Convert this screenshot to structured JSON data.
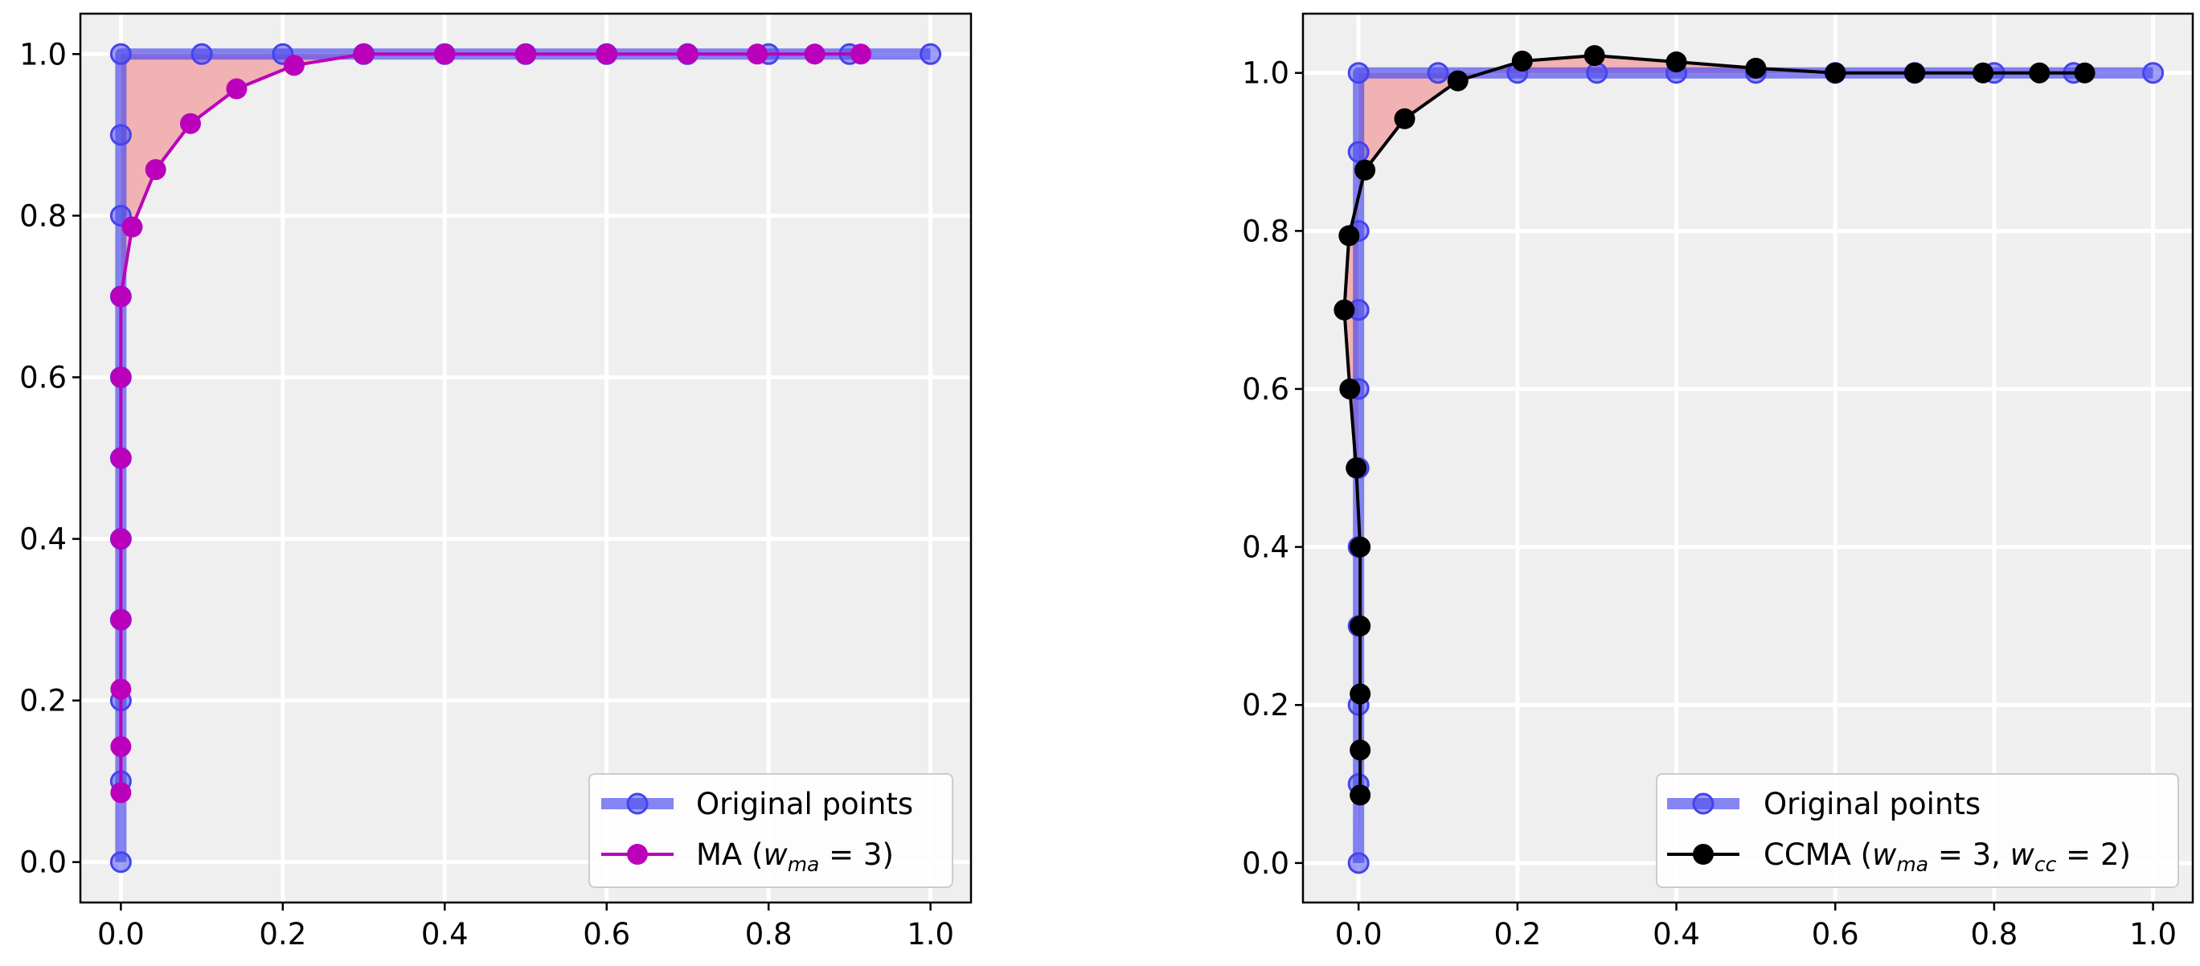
{
  "chart_data": [
    {
      "type": "line",
      "xlim": [
        -0.05,
        1.05
      ],
      "ylim": [
        -0.05,
        1.05
      ],
      "xticks": [
        0.0,
        0.2,
        0.4,
        0.6,
        0.8,
        1.0
      ],
      "yticks": [
        0.0,
        0.2,
        0.4,
        0.6,
        0.8,
        1.0
      ],
      "tick_labels": [
        "0.0",
        "0.2",
        "0.4",
        "0.6",
        "0.8",
        "1.0"
      ],
      "grid": true,
      "legend_position": "lower-right",
      "series": [
        {
          "name": "Original points",
          "color": "#4444ee",
          "x": [
            0,
            0,
            0,
            0,
            0,
            0,
            0,
            0,
            0,
            0,
            0,
            0.1,
            0.2,
            0.3,
            0.4,
            0.5,
            0.6,
            0.7,
            0.8,
            0.9,
            1.0
          ],
          "y": [
            0,
            0.1,
            0.2,
            0.3,
            0.4,
            0.5,
            0.6,
            0.7,
            0.8,
            0.9,
            1.0,
            1.0,
            1.0,
            1.0,
            1.0,
            1.0,
            1.0,
            1.0,
            1.0,
            1.0,
            1.0
          ]
        },
        {
          "name": "MA",
          "color": "#bb00bb",
          "x": [
            0,
            0,
            0,
            0,
            0,
            0,
            0,
            0,
            0.014,
            0.043,
            0.086,
            0.143,
            0.214,
            0.3,
            0.4,
            0.5,
            0.6,
            0.7,
            0.786,
            0.857,
            0.914
          ],
          "y": [
            0.086,
            0.143,
            0.214,
            0.3,
            0.4,
            0.5,
            0.6,
            0.7,
            0.786,
            0.857,
            0.914,
            0.957,
            0.986,
            1.0,
            1.0,
            1.0,
            1.0,
            1.0,
            1.0,
            1.0,
            1.0
          ]
        }
      ],
      "legend": {
        "entry_1": "Original points",
        "entry_2_prefix": "MA (",
        "entry_2_w": "w",
        "entry_2_sub": "ma",
        "entry_2_suffix": " = 3)"
      }
    },
    {
      "type": "line",
      "xlim": [
        -0.07,
        1.05
      ],
      "ylim": [
        -0.05,
        1.075
      ],
      "xticks": [
        0.0,
        0.2,
        0.4,
        0.6,
        0.8,
        1.0
      ],
      "yticks": [
        0.0,
        0.2,
        0.4,
        0.6,
        0.8,
        1.0
      ],
      "tick_labels": [
        "0.0",
        "0.2",
        "0.4",
        "0.6",
        "0.8",
        "1.0"
      ],
      "grid": true,
      "legend_position": "lower-right",
      "series": [
        {
          "name": "Original points",
          "color": "#4444ee",
          "x": [
            0,
            0,
            0,
            0,
            0,
            0,
            0,
            0,
            0,
            0,
            0,
            0.1,
            0.2,
            0.3,
            0.4,
            0.5,
            0.6,
            0.7,
            0.8,
            0.9,
            1.0
          ],
          "y": [
            0,
            0.1,
            0.2,
            0.3,
            0.4,
            0.5,
            0.6,
            0.7,
            0.8,
            0.9,
            1.0,
            1.0,
            1.0,
            1.0,
            1.0,
            1.0,
            1.0,
            1.0,
            1.0,
            1.0,
            1.0
          ]
        },
        {
          "name": "CCMA",
          "color": "#000000",
          "x": [
            0.002,
            0.002,
            0.002,
            0.002,
            0.002,
            -0.003,
            -0.011,
            -0.018,
            -0.012,
            0.008,
            0.058,
            0.125,
            0.206,
            0.297,
            0.4,
            0.5,
            0.6,
            0.7,
            0.786,
            0.857,
            0.914
          ],
          "y": [
            0.086,
            0.143,
            0.214,
            0.3,
            0.4,
            0.5,
            0.6,
            0.7,
            0.794,
            0.877,
            0.942,
            0.99,
            1.015,
            1.022,
            1.014,
            1.006,
            1.0,
            1.0,
            1.0,
            1.0,
            1.0
          ]
        }
      ],
      "legend": {
        "entry_1": "Original points",
        "entry_2_prefix": "CCMA (",
        "entry_2_w1": "w",
        "entry_2_sub1": "ma",
        "entry_2_mid": " = 3, ",
        "entry_2_w2": "w",
        "entry_2_sub2": "cc",
        "entry_2_suffix": " = 2)"
      }
    }
  ]
}
